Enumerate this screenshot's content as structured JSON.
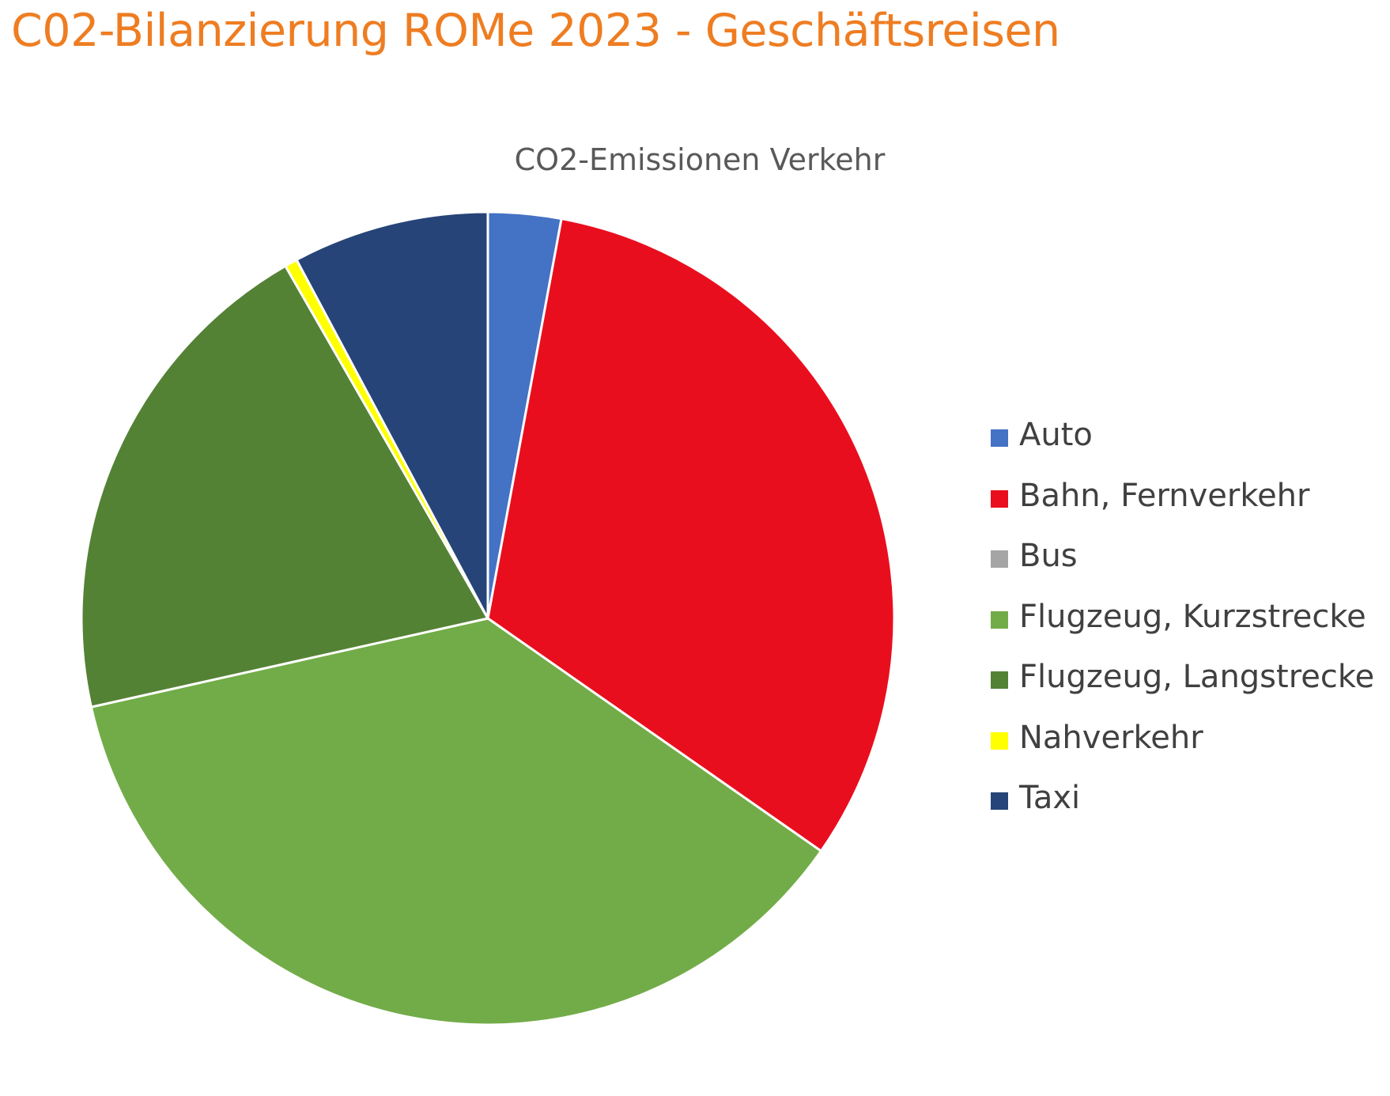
{
  "page": {
    "title": "C02-Bilanzierung ROMe 2023 - Geschäftsreisen",
    "title_color": "#EE7D22"
  },
  "chart_data": {
    "type": "pie",
    "title": "CO2-Emissionen Verkehr",
    "legend_position": "right",
    "categories": [
      "Auto",
      "Bahn, Fernverkehr",
      "Bus",
      "Flugzeug, Kurzstrecke",
      "Flugzeug, Langstrecke",
      "Nahverkehr",
      "Taxi"
    ],
    "values": [
      2.9,
      31.8,
      0.0,
      36.8,
      20.2,
      0.5,
      7.8
    ],
    "colors": [
      "#4472C4",
      "#E90E1E",
      "#A5A5A5",
      "#72AC48",
      "#548235",
      "#FFFF00",
      "#264478"
    ]
  }
}
